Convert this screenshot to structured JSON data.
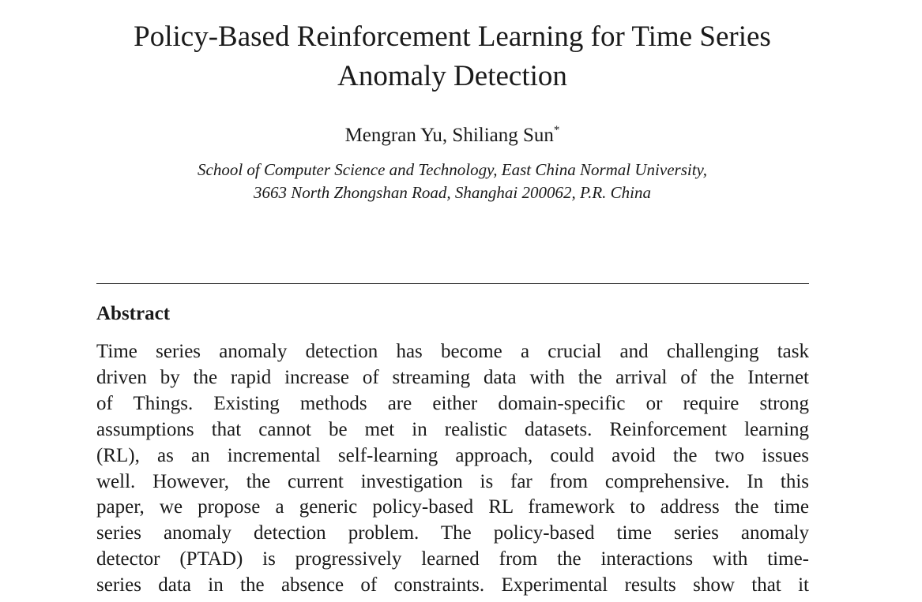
{
  "paper": {
    "title_lines": [
      "Policy-Based Reinforcement Learning for Time Series",
      "Anomaly Detection"
    ],
    "authors": "Mengran Yu, Shiliang Sun",
    "author_mark": "*",
    "affiliation_lines": [
      "School of Computer Science and Technology, East China Normal University,",
      "3663 North Zhongshan Road, Shanghai 200062, P.R. China"
    ],
    "abstract_heading": "Abstract",
    "abstract_lines": [
      "Time series anomaly detection has become a crucial and challenging task",
      "driven by the rapid increase of streaming data with the arrival of the Internet",
      "of Things.  Existing methods are either domain-specific or require strong",
      "assumptions that cannot be met in realistic datasets. Reinforcement learning",
      "(RL), as an incremental self-learning approach, could avoid the two issues",
      "well. However, the current investigation is far from comprehensive. In this",
      "paper, we propose a generic policy-based RL framework to address the time",
      "series anomaly detection problem.  The policy-based time series anomaly",
      "detector (PTAD) is progressively learned from the interactions with time-",
      "series data in the absence of constraints. Experimental results show that it"
    ]
  }
}
